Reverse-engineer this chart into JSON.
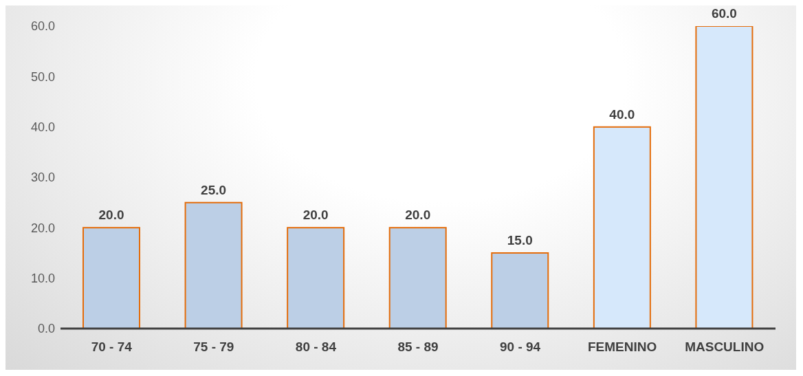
{
  "chart_data": {
    "type": "bar",
    "categories": [
      "70 - 74",
      "75 - 79",
      "80 - 84",
      "85 - 89",
      "90 - 94",
      "FEMENINO",
      "MASCULINO"
    ],
    "values": [
      20,
      25,
      20,
      20,
      15,
      40,
      60
    ],
    "value_labels": [
      "20.0",
      "25.0",
      "20.0",
      "20.0",
      "15.0",
      "40.0",
      "60.0"
    ],
    "colors": [
      "#bccfe6",
      "#bccfe6",
      "#bccfe6",
      "#bccfe6",
      "#bccfe6",
      "#d6e8fb",
      "#d6e8fb"
    ],
    "ylim": [
      0,
      60
    ],
    "yticks": [
      {
        "value": 0,
        "label": "0.0"
      },
      {
        "value": 10,
        "label": "10.0"
      },
      {
        "value": 20,
        "label": "20.0"
      },
      {
        "value": 30,
        "label": "30.0"
      },
      {
        "value": 40,
        "label": "40.0"
      },
      {
        "value": 50,
        "label": "50.0"
      },
      {
        "value": 60,
        "label": "60.0"
      }
    ],
    "grid": false,
    "legend": false
  }
}
